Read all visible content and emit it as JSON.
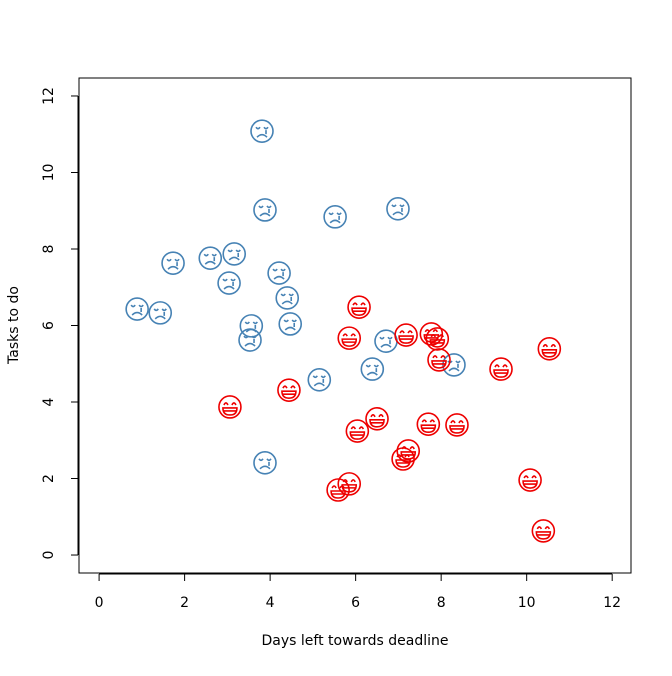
{
  "chart_data": {
    "type": "scatter",
    "xlabel": "Days left towards deadline",
    "ylabel": "Tasks to do",
    "xlim": [
      -0.47,
      12.44
    ],
    "ylim": [
      -0.47,
      12.47
    ],
    "xticks": [
      0,
      2,
      4,
      6,
      8,
      10,
      12
    ],
    "yticks": [
      0,
      2,
      4,
      6,
      8,
      10,
      12
    ],
    "series": [
      {
        "color": "#4682b4",
        "marker": "sad",
        "x": [
          3.81,
          3.88,
          5.52,
          6.99,
          1.73,
          2.6,
          3.16,
          3.04,
          4.21,
          4.4,
          0.89,
          1.43,
          3.56,
          3.53,
          4.47,
          6.71,
          6.39,
          5.15,
          8.3,
          3.88
        ],
        "y": [
          11.08,
          9.02,
          8.84,
          9.05,
          7.63,
          7.76,
          7.87,
          7.11,
          7.37,
          6.72,
          6.43,
          6.33,
          5.99,
          5.62,
          6.04,
          5.59,
          4.86,
          4.58,
          4.97,
          2.41
        ]
      },
      {
        "color": "#ee0000",
        "marker": "happy",
        "x": [
          6.08,
          5.85,
          7.18,
          7.77,
          7.91,
          7.95,
          10.53,
          9.4,
          4.44,
          3.06,
          6.5,
          6.04,
          7.7,
          8.37,
          7.23,
          7.11,
          5.85,
          5.59,
          10.08,
          10.39
        ],
        "y": [
          6.48,
          5.67,
          5.75,
          5.78,
          5.65,
          5.1,
          5.39,
          4.86,
          4.31,
          3.87,
          3.56,
          3.24,
          3.42,
          3.4,
          2.72,
          2.51,
          1.86,
          1.7,
          1.96,
          0.63
        ]
      }
    ]
  }
}
